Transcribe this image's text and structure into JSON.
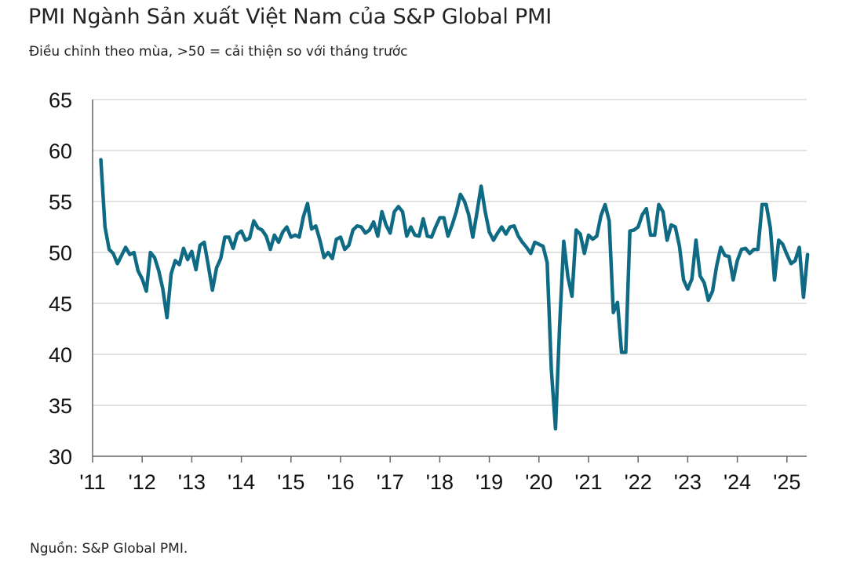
{
  "title": "PMI Ngành Sản xuất Việt Nam của S&P Global PMI",
  "subtitle": "Điều chỉnh theo mùa, >50 = cải thiện so với tháng trước",
  "source": "Nguồn: S&P Global PMI.",
  "colors": {
    "line": "#0f6a84",
    "grid": "#d9d9d9",
    "axis": "#666666"
  },
  "chart_data": {
    "type": "line",
    "title": "PMI Ngành Sản xuất Việt Nam của S&P Global PMI",
    "xlabel": "",
    "ylabel": "",
    "ylim": [
      30,
      65
    ],
    "yticks": [
      30,
      35,
      40,
      45,
      50,
      55,
      60,
      65
    ],
    "xticks": [
      "'11",
      "'12",
      "'13",
      "'14",
      "'15",
      "'16",
      "'17",
      "'18",
      "'19",
      "'20",
      "'21",
      "'22",
      "'23",
      "'24",
      "'25"
    ],
    "grid": true,
    "series": [
      {
        "x_start": "2011-03",
        "frequency": "monthly",
        "values": [
          59.1,
          52.5,
          50.3,
          49.9,
          48.9,
          49.7,
          50.5,
          49.8,
          50.0,
          48.2,
          47.4,
          46.2,
          50.0,
          49.5,
          48.2,
          46.4,
          43.6,
          47.9,
          49.2,
          48.8,
          50.4,
          49.3,
          50.1,
          48.3,
          50.7,
          51.0,
          48.7,
          46.3,
          48.5,
          49.4,
          51.5,
          51.5,
          50.4,
          51.8,
          52.1,
          51.2,
          51.4,
          53.1,
          52.4,
          52.2,
          51.6,
          50.3,
          51.7,
          51.0,
          52.0,
          52.5,
          51.5,
          51.7,
          51.5,
          53.5,
          54.8,
          52.3,
          52.6,
          51.2,
          49.5,
          50.0,
          49.4,
          51.3,
          51.5,
          50.3,
          50.7,
          52.2,
          52.6,
          52.5,
          51.9,
          52.2,
          53.0,
          51.6,
          54.0,
          52.7,
          51.9,
          54.0,
          54.5,
          54.0,
          51.6,
          52.5,
          51.7,
          51.6,
          53.3,
          51.6,
          51.5,
          52.5,
          53.4,
          53.4,
          51.6,
          52.7,
          54.0,
          55.7,
          55.0,
          53.7,
          51.5,
          53.9,
          56.5,
          54.0,
          52.0,
          51.2,
          51.9,
          52.5,
          51.8,
          52.5,
          52.6,
          51.6,
          51.0,
          50.5,
          49.9,
          51.0,
          50.8,
          50.6,
          49.0,
          38.5,
          32.7,
          42.7,
          51.1,
          47.6,
          45.7,
          52.2,
          51.8,
          49.9,
          51.7,
          51.3,
          51.6,
          53.6,
          54.7,
          53.1,
          44.1,
          45.1,
          40.2,
          40.2,
          52.1,
          52.2,
          52.5,
          53.7,
          54.3,
          51.7,
          51.7,
          54.7,
          54.0,
          51.2,
          52.7,
          52.5,
          50.6,
          47.3,
          46.4,
          47.4,
          51.2,
          47.7,
          47.0,
          45.3,
          46.2,
          48.7,
          50.5,
          49.7,
          49.6,
          47.3,
          49.2,
          50.3,
          50.4,
          49.9,
          50.3,
          50.3,
          54.7,
          54.7,
          52.4,
          47.3,
          51.2,
          50.8,
          49.8,
          48.9,
          49.2,
          50.5,
          45.6,
          49.8
        ]
      }
    ]
  }
}
